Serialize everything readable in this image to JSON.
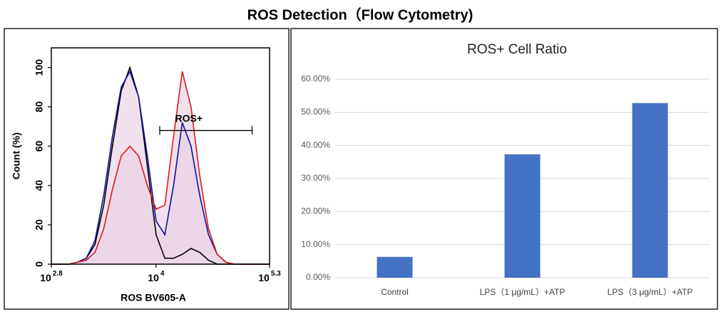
{
  "title": "ROS Detection（Flow Cytometry)",
  "chart_data": [
    {
      "type": "line",
      "x_label": "ROS BV605-A",
      "y_label": "Count (%)",
      "log_x": true,
      "xlim": [
        631,
        199526
      ],
      "xticks": [
        {
          "value": 631,
          "label": "10",
          "exponent": "2.8"
        },
        {
          "value": 10000,
          "label": "10",
          "exponent": "4"
        },
        {
          "value": 199526,
          "label": "10",
          "exponent": "5.3"
        }
      ],
      "ylim": [
        0,
        110
      ],
      "yticks": [
        0,
        20,
        40,
        60,
        80,
        100
      ],
      "fill": "#e9d3e6",
      "x": [
        631,
        794,
        1000,
        1259,
        1585,
        1995,
        2512,
        3162,
        3981,
        5012,
        6310,
        7943,
        10000,
        12589,
        15849,
        19953,
        25119,
        31623,
        39811,
        50119,
        63096,
        79433,
        100000,
        125893,
        158489,
        199526
      ],
      "series": [
        {
          "color": "#000000",
          "filled": false,
          "values": [
            0,
            0,
            0,
            1,
            3,
            10,
            30,
            60,
            88,
            100,
            85,
            50,
            15,
            3,
            3,
            5,
            8,
            6,
            2,
            0,
            0,
            0,
            0,
            0,
            0,
            0
          ]
        },
        {
          "color": "#1010a0",
          "filled": true,
          "values": [
            0,
            0,
            0,
            1,
            3,
            12,
            35,
            65,
            90,
            98,
            85,
            55,
            22,
            15,
            40,
            72,
            60,
            35,
            15,
            5,
            1,
            0,
            0,
            0,
            0,
            0
          ]
        },
        {
          "color": "#e01818",
          "filled": true,
          "values": [
            0,
            0,
            0,
            1,
            2,
            6,
            18,
            38,
            55,
            60,
            55,
            40,
            28,
            30,
            65,
            98,
            80,
            45,
            18,
            5,
            1,
            0,
            0,
            0,
            0,
            0
          ]
        }
      ],
      "gate": {
        "text": "ROS+",
        "range": [
          11000,
          126000
        ],
        "level": 68
      }
    },
    {
      "type": "bar",
      "title": "ROS+ Cell Ratio",
      "categories": [
        "Control",
        "LPS（1 μg/mL）+ATP",
        "LPS（3 μg/mL）+ATP"
      ],
      "values": [
        6.3,
        37.3,
        52.8
      ],
      "color": "#4472c4",
      "ylim": [
        0,
        60
      ],
      "yticks": [
        {
          "value": 0,
          "label": "0.00%"
        },
        {
          "value": 10,
          "label": "10.00%"
        },
        {
          "value": 20,
          "label": "20.00%"
        },
        {
          "value": 30,
          "label": "30.00%"
        },
        {
          "value": 40,
          "label": "40.00%"
        },
        {
          "value": 50,
          "label": "50.00%"
        },
        {
          "value": 60,
          "label": "60.00%"
        }
      ],
      "grid": true
    }
  ]
}
